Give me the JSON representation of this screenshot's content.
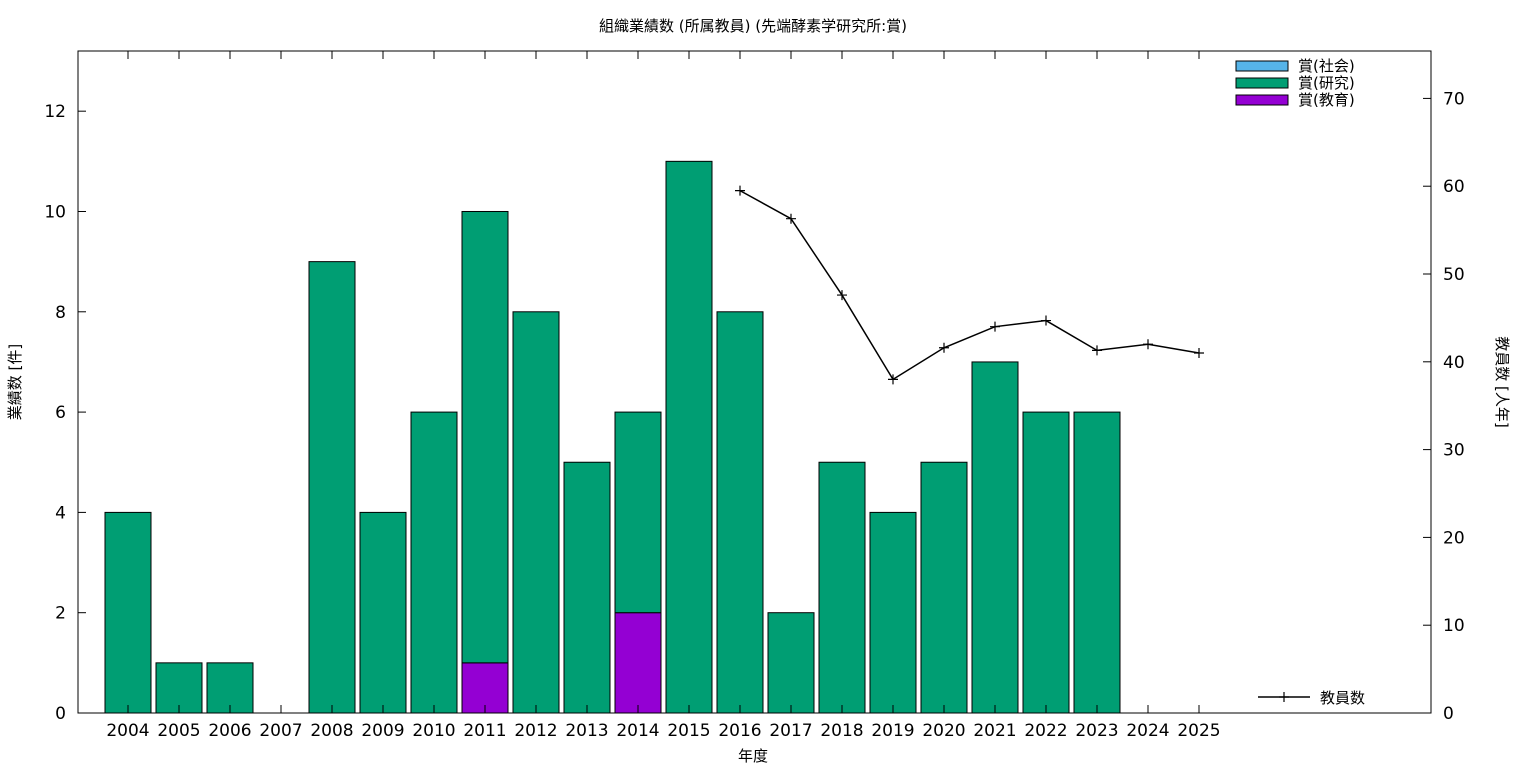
{
  "chart_data": {
    "type": "bar",
    "stacked": true,
    "title": "組織業績数 (所属教員) (先端酵素学研究所:賞)",
    "xlabel": "年度",
    "ylabel": "業績数 [件]",
    "y2label": "教員数 [人年]",
    "ylim": [
      0,
      13.2
    ],
    "y2lim": [
      0,
      75.4
    ],
    "yticks": [
      0,
      2,
      4,
      6,
      8,
      10,
      12
    ],
    "y2ticks": [
      0,
      10,
      20,
      30,
      40,
      50,
      60,
      70
    ],
    "categories": [
      "2004",
      "2005",
      "2006",
      "2007",
      "2008",
      "2009",
      "2010",
      "2011",
      "2012",
      "2013",
      "2014",
      "2015",
      "2016",
      "2017",
      "2018",
      "2019",
      "2020",
      "2021",
      "2022",
      "2023",
      "2024",
      "2025"
    ],
    "series": [
      {
        "name": "賞(社会)",
        "color": "#56b4e9",
        "values": [
          0,
          0,
          0,
          0,
          0,
          0,
          0,
          0,
          0,
          0,
          0,
          0,
          0,
          0,
          0,
          0,
          0,
          0,
          0,
          0,
          0,
          0
        ]
      },
      {
        "name": "賞(研究)",
        "color": "#009e73",
        "values": [
          4,
          1,
          1,
          0,
          9,
          4,
          6,
          9,
          8,
          5,
          4,
          11,
          8,
          2,
          5,
          4,
          5,
          7,
          6,
          6,
          0,
          0
        ]
      },
      {
        "name": "賞(教育)",
        "color": "#9400d3",
        "values": [
          0,
          0,
          0,
          0,
          0,
          0,
          0,
          1,
          0,
          0,
          2,
          0,
          0,
          0,
          0,
          0,
          0,
          0,
          0,
          0,
          0,
          0
        ]
      }
    ],
    "line_series": {
      "name": "教員数",
      "color": "#000000",
      "axis": "y2",
      "values": [
        null,
        null,
        null,
        null,
        null,
        null,
        null,
        null,
        null,
        null,
        null,
        null,
        59.5,
        56.3,
        47.6,
        38.0,
        41.6,
        44.0,
        44.7,
        41.3,
        42.0,
        41.0
      ]
    },
    "grid": false,
    "legend": "top-right"
  }
}
